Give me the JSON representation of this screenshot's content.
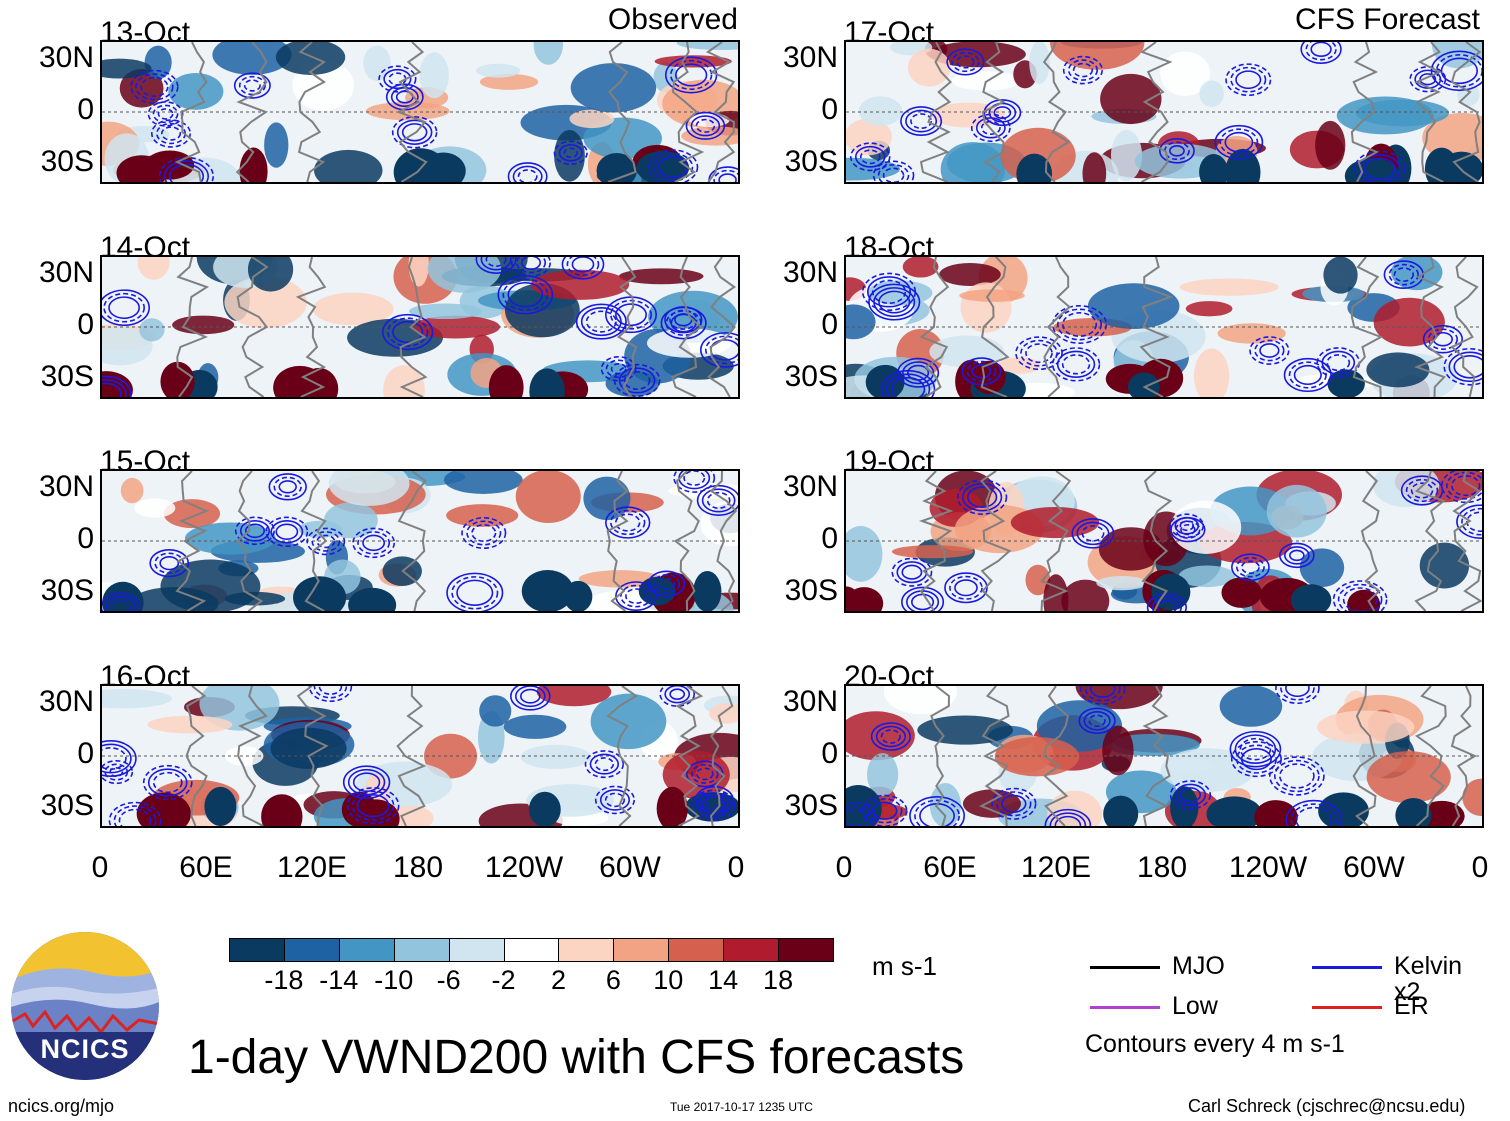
{
  "title": "1-day VWND200 with CFS forecasts",
  "panel_headers": {
    "left": "Observed",
    "right": "CFS Forecast"
  },
  "colors": {
    "neg_dark": "#0b3a61",
    "pos_dark": "#6a0017",
    "contour_kelvin": "#1a1adf",
    "coast": "#808080"
  },
  "chart_data": {
    "type": "heatmap",
    "variable": "200-hPa meridional wind anomaly",
    "units": "m s-1",
    "contour_note": "Contours every 4 m s-1",
    "y_ticks": [
      "30N",
      "0",
      "30S"
    ],
    "x_ticks": [
      "0",
      "60E",
      "120E",
      "180",
      "120W",
      "60W",
      "0"
    ],
    "ylim": [
      -40,
      40
    ],
    "panels": [
      {
        "date": "13-Oct",
        "source": "Observed"
      },
      {
        "date": "14-Oct",
        "source": "Observed"
      },
      {
        "date": "15-Oct",
        "source": "Observed"
      },
      {
        "date": "16-Oct",
        "source": "Observed"
      },
      {
        "date": "17-Oct",
        "source": "CFS Forecast"
      },
      {
        "date": "18-Oct",
        "source": "CFS Forecast"
      },
      {
        "date": "19-Oct",
        "source": "CFS Forecast"
      },
      {
        "date": "20-Oct",
        "source": "CFS Forecast"
      }
    ],
    "colorbar": {
      "labels": [
        "-18",
        "-14",
        "-10",
        "-6",
        "-2",
        "2",
        "6",
        "10",
        "14",
        "18"
      ],
      "colors": [
        "#0b3a61",
        "#1f62a3",
        "#4396c4",
        "#93c4de",
        "#d0e5f0",
        "#ffffff",
        "#fbd4c2",
        "#f2a383",
        "#d6604e",
        "#b01c2d",
        "#6a0017"
      ]
    },
    "legend": [
      {
        "label": "MJO",
        "color": "#000000"
      },
      {
        "label": "Kelvin x2",
        "color": "#1a1adf"
      },
      {
        "label": "Low",
        "color": "#b040d0"
      },
      {
        "label": "ER",
        "color": "#e02020"
      }
    ]
  },
  "logo": {
    "text": "NCICS"
  },
  "footer": {
    "url": "ncics.org/mjo",
    "timestamp": "Tue 2017-10-17 1235 UTC",
    "author": "Carl Schreck (cjschrec@ncsu.edu)"
  }
}
